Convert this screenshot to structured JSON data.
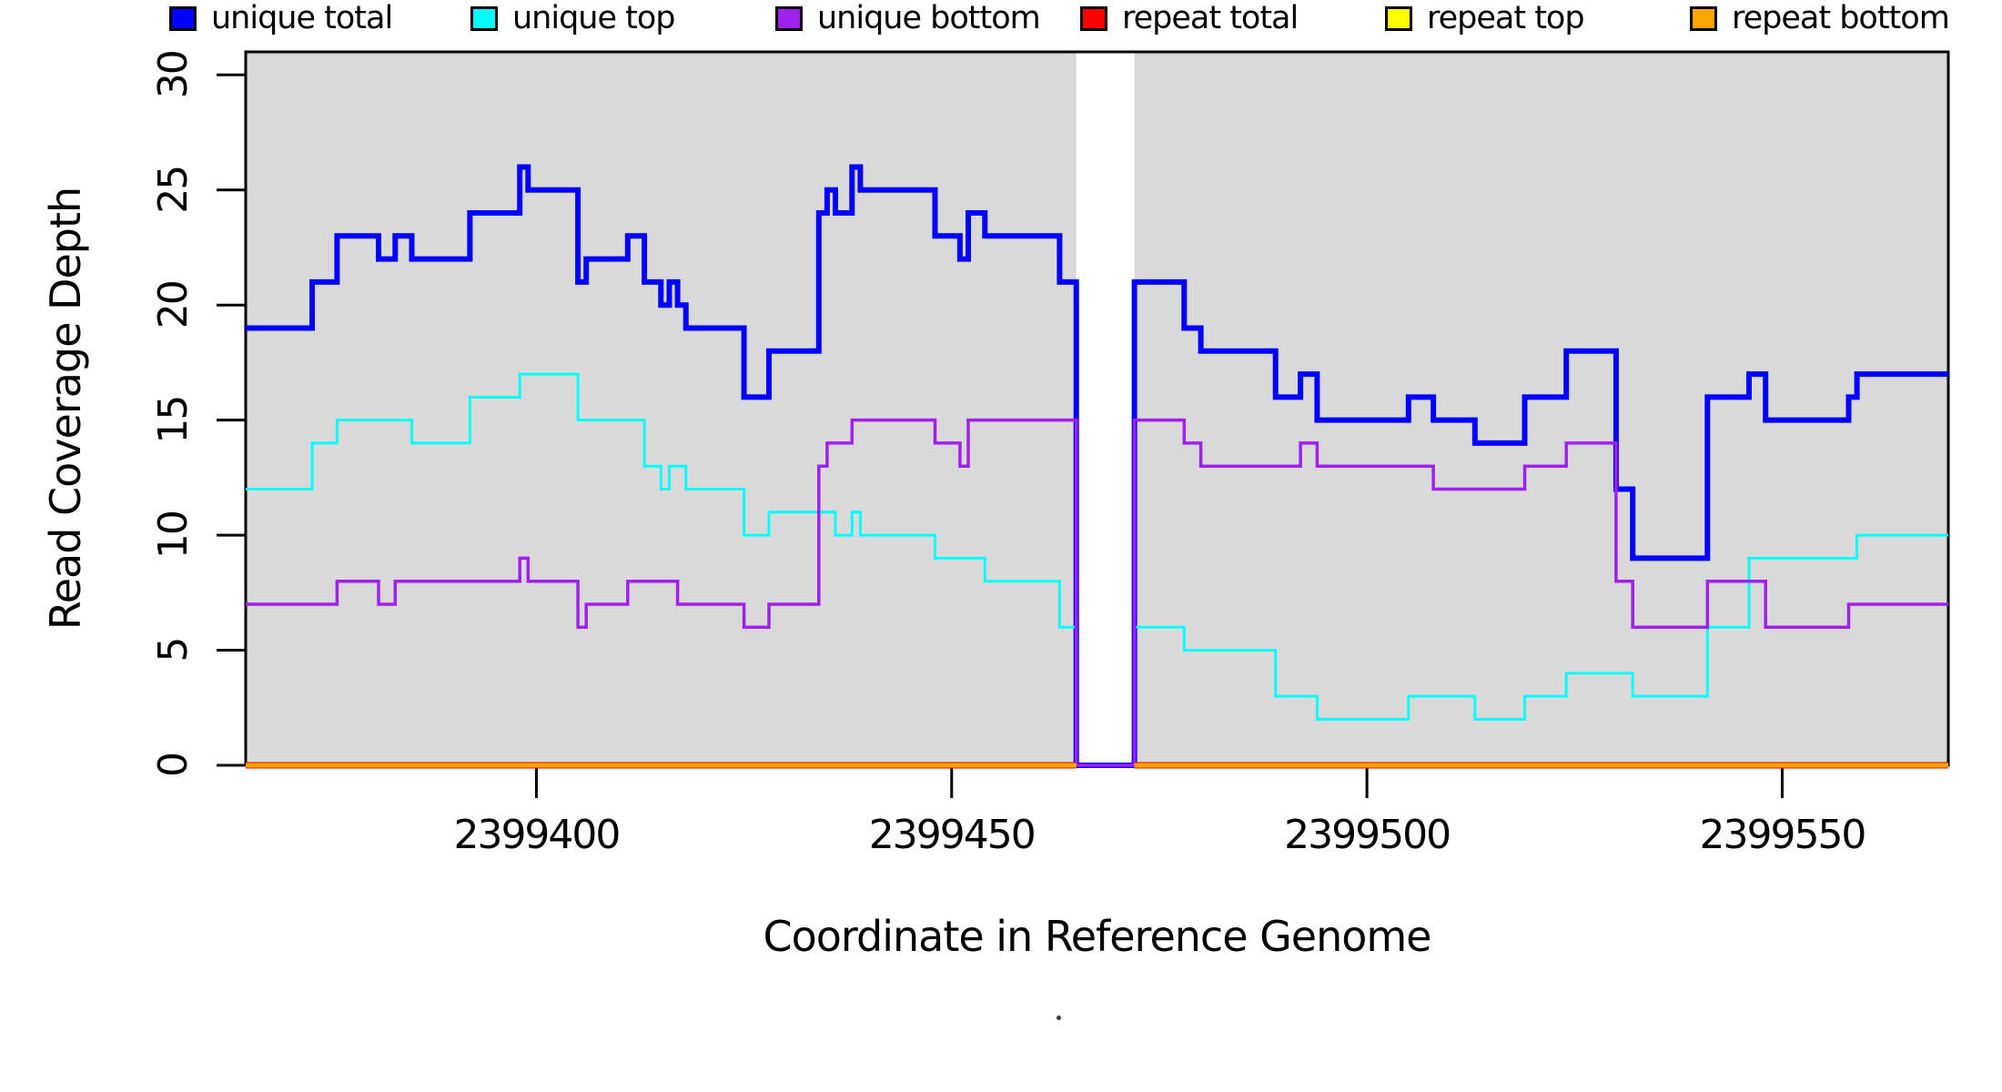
{
  "figure": {
    "xlabel": "Coordinate in Reference Genome",
    "ylabel": "Read Coverage Depth"
  },
  "chart_data": {
    "type": "line",
    "subtype": "step",
    "title": "",
    "xlabel": "Coordinate in Reference Genome",
    "ylabel": "Read Coverage Depth",
    "xlim": [
      2399365,
      2399570
    ],
    "ylim": [
      0,
      31
    ],
    "x_ticks": [
      2399400,
      2399450,
      2399500,
      2399550
    ],
    "y_ticks": [
      0,
      5,
      10,
      15,
      20,
      25,
      30
    ],
    "grid": false,
    "legend_position": "bottom",
    "plot_bg": "#D9D9D9",
    "box_color": "#000000",
    "gap_region": [
      2399465,
      2399472
    ],
    "end_x": 2399570,
    "series": [
      {
        "name": "unique total",
        "color": "#0000FF",
        "stroke_width": 6,
        "steps": [
          [
            2399365,
            19
          ],
          [
            2399373,
            21
          ],
          [
            2399376,
            23
          ],
          [
            2399381,
            22
          ],
          [
            2399383,
            23
          ],
          [
            2399385,
            22
          ],
          [
            2399392,
            24
          ],
          [
            2399398,
            26
          ],
          [
            2399399,
            25
          ],
          [
            2399405,
            21
          ],
          [
            2399406,
            22
          ],
          [
            2399411,
            23
          ],
          [
            2399413,
            21
          ],
          [
            2399415,
            20
          ],
          [
            2399416,
            21
          ],
          [
            2399417,
            20
          ],
          [
            2399418,
            19
          ],
          [
            2399425,
            16
          ],
          [
            2399428,
            18
          ],
          [
            2399434,
            24
          ],
          [
            2399435,
            25
          ],
          [
            2399436,
            24
          ],
          [
            2399438,
            26
          ],
          [
            2399439,
            25
          ],
          [
            2399448,
            23
          ],
          [
            2399451,
            22
          ],
          [
            2399452,
            24
          ],
          [
            2399454,
            23
          ],
          [
            2399463,
            21
          ],
          [
            2399465,
            0
          ],
          [
            2399472,
            21
          ],
          [
            2399478,
            19
          ],
          [
            2399480,
            18
          ],
          [
            2399489,
            16
          ],
          [
            2399492,
            17
          ],
          [
            2399494,
            15
          ],
          [
            2399505,
            16
          ],
          [
            2399508,
            15
          ],
          [
            2399513,
            14
          ],
          [
            2399519,
            16
          ],
          [
            2399524,
            18
          ],
          [
            2399530,
            12
          ],
          [
            2399532,
            9
          ],
          [
            2399541,
            16
          ],
          [
            2399546,
            17
          ],
          [
            2399548,
            15
          ],
          [
            2399558,
            16
          ],
          [
            2399559,
            17
          ]
        ]
      },
      {
        "name": "unique top",
        "color": "#00FFFF",
        "stroke_width": 3,
        "steps": [
          [
            2399365,
            12
          ],
          [
            2399373,
            14
          ],
          [
            2399376,
            15
          ],
          [
            2399385,
            14
          ],
          [
            2399392,
            16
          ],
          [
            2399398,
            17
          ],
          [
            2399405,
            15
          ],
          [
            2399413,
            13
          ],
          [
            2399415,
            12
          ],
          [
            2399416,
            13
          ],
          [
            2399418,
            12
          ],
          [
            2399425,
            10
          ],
          [
            2399428,
            11
          ],
          [
            2399436,
            10
          ],
          [
            2399438,
            11
          ],
          [
            2399439,
            10
          ],
          [
            2399448,
            9
          ],
          [
            2399454,
            8
          ],
          [
            2399463,
            6
          ],
          [
            2399465,
            0
          ],
          [
            2399472,
            6
          ],
          [
            2399478,
            5
          ],
          [
            2399489,
            3
          ],
          [
            2399494,
            2
          ],
          [
            2399505,
            3
          ],
          [
            2399513,
            2
          ],
          [
            2399519,
            3
          ],
          [
            2399524,
            4
          ],
          [
            2399532,
            3
          ],
          [
            2399541,
            6
          ],
          [
            2399546,
            9
          ],
          [
            2399559,
            10
          ]
        ]
      },
      {
        "name": "unique bottom",
        "color": "#A020F0",
        "stroke_width": 3.5,
        "steps": [
          [
            2399365,
            7
          ],
          [
            2399376,
            8
          ],
          [
            2399381,
            7
          ],
          [
            2399383,
            8
          ],
          [
            2399398,
            9
          ],
          [
            2399399,
            8
          ],
          [
            2399405,
            6
          ],
          [
            2399406,
            7
          ],
          [
            2399411,
            8
          ],
          [
            2399417,
            7
          ],
          [
            2399425,
            6
          ],
          [
            2399428,
            7
          ],
          [
            2399434,
            13
          ],
          [
            2399435,
            14
          ],
          [
            2399438,
            15
          ],
          [
            2399448,
            14
          ],
          [
            2399451,
            13
          ],
          [
            2399452,
            15
          ],
          [
            2399465,
            0
          ],
          [
            2399472,
            15
          ],
          [
            2399478,
            14
          ],
          [
            2399480,
            13
          ],
          [
            2399492,
            14
          ],
          [
            2399494,
            13
          ],
          [
            2399508,
            12
          ],
          [
            2399519,
            13
          ],
          [
            2399524,
            14
          ],
          [
            2399530,
            8
          ],
          [
            2399532,
            6
          ],
          [
            2399541,
            8
          ],
          [
            2399548,
            6
          ],
          [
            2399558,
            7
          ]
        ]
      },
      {
        "name": "repeat total",
        "color": "#FF0000",
        "stroke_width": 7,
        "steps": [
          [
            2399365,
            0
          ],
          [
            2399465,
            null
          ],
          [
            2399472,
            0
          ]
        ]
      },
      {
        "name": "repeat top",
        "color": "#FFFF00",
        "stroke_width": 4,
        "steps": [
          [
            2399365,
            0
          ],
          [
            2399465,
            null
          ],
          [
            2399472,
            0
          ]
        ]
      },
      {
        "name": "repeat bottom",
        "color": "#FFA500",
        "stroke_width": 5,
        "steps": [
          [
            2399365,
            0
          ],
          [
            2399465,
            null
          ],
          [
            2399472,
            0
          ]
        ]
      }
    ]
  },
  "legend": {
    "items": [
      {
        "label": "unique total",
        "color": "#0000FF"
      },
      {
        "label": "unique top",
        "color": "#00FFFF"
      },
      {
        "label": "unique bottom",
        "color": "#A020F0"
      },
      {
        "label": "repeat total",
        "color": "#FF0000"
      },
      {
        "label": "repeat top",
        "color": "#FFFF00"
      },
      {
        "label": "repeat bottom",
        "color": "#FFA500"
      }
    ],
    "artifact": "dot"
  }
}
